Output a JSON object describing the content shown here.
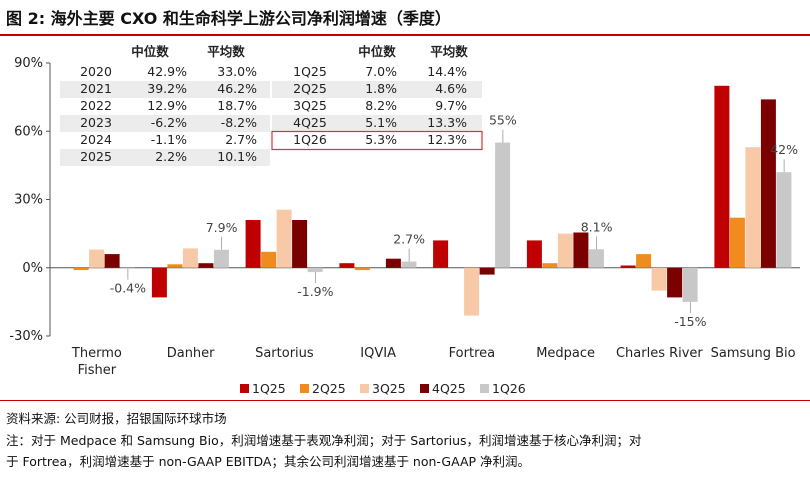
{
  "title": "图 2: 海外主要 CXO 和生命科学上游公司净利润增速（季度）",
  "source": "资料来源: 公司财报，招银国际环球市场",
  "note_line1": "注：对于 Medpace 和 Samsung Bio，利润增速基于表观净利润；对于 Sartorius，利润增速基于核心净利润；对",
  "note_line2": "于 Fortrea，利润增速基于 non-GAAP EBITDA；其余公司利润增速基于 non-GAAP 净利润。",
  "colors": {
    "1Q25": "#c00000",
    "2Q25": "#f08c1e",
    "3Q25": "#f8c9a6",
    "4Q25": "#7b0000",
    "1Q26": "#c8c8c8",
    "highlight_box": "#e03030",
    "table_shade": "#ececec"
  },
  "chart_data": {
    "type": "bar",
    "ylim": [
      -30,
      90
    ],
    "yticks": [
      "-30%",
      "0%",
      "30%",
      "60%",
      "90%"
    ],
    "ytick_values": [
      -30,
      0,
      30,
      60,
      90
    ],
    "legend_position": "bottom",
    "categories": [
      "Thermo Fisher",
      "Danher",
      "Sartorius",
      "IQVIA",
      "Fortrea",
      "Medpace",
      "Charles River",
      "Samsung Bio"
    ],
    "category_lines": [
      [
        "Thermo",
        "Fisher"
      ],
      [
        "Danher"
      ],
      [
        "Sartorius"
      ],
      [
        "IQVIA"
      ],
      [
        "Fortrea"
      ],
      [
        "Medpace"
      ],
      [
        "Charles River"
      ],
      [
        "Samsung Bio"
      ]
    ],
    "series": [
      {
        "name": "1Q25",
        "values": [
          0,
          -13,
          21,
          2,
          12,
          12,
          1,
          80
        ]
      },
      {
        "name": "2Q25",
        "values": [
          -1,
          1.5,
          7,
          -1,
          0,
          2,
          6,
          22
        ]
      },
      {
        "name": "3Q25",
        "values": [
          8,
          8.5,
          25.5,
          0,
          -21,
          15,
          -10,
          53
        ]
      },
      {
        "name": "4Q25",
        "values": [
          6,
          2,
          21,
          4,
          -3,
          15.5,
          -13,
          74
        ]
      },
      {
        "name": "1Q26",
        "values": [
          -0.4,
          7.9,
          -1.9,
          2.7,
          55,
          8.1,
          -15,
          42
        ]
      }
    ],
    "data_labels": [
      "-0.4%",
      "7.9%",
      "-1.9%",
      "2.7%",
      "55%",
      "8.1%",
      "-15%",
      "42%"
    ],
    "inset_table": {
      "headers": [
        "中位数",
        "平均数"
      ],
      "annual": [
        [
          "2020",
          "42.9%",
          "33.0%"
        ],
        [
          "2021",
          "39.2%",
          "46.2%"
        ],
        [
          "2022",
          "12.9%",
          "18.7%"
        ],
        [
          "2023",
          "-6.2%",
          "-8.2%"
        ],
        [
          "2024",
          "-1.1%",
          "2.7%"
        ],
        [
          "2025",
          "2.2%",
          "10.1%"
        ]
      ],
      "quarterly": [
        [
          "1Q25",
          "7.0%",
          "14.4%"
        ],
        [
          "2Q25",
          "1.8%",
          "4.6%"
        ],
        [
          "3Q25",
          "8.2%",
          "9.7%"
        ],
        [
          "4Q25",
          "5.1%",
          "13.3%"
        ],
        [
          "1Q26",
          "5.3%",
          "12.3%"
        ]
      ],
      "highlight": "1Q26"
    }
  }
}
